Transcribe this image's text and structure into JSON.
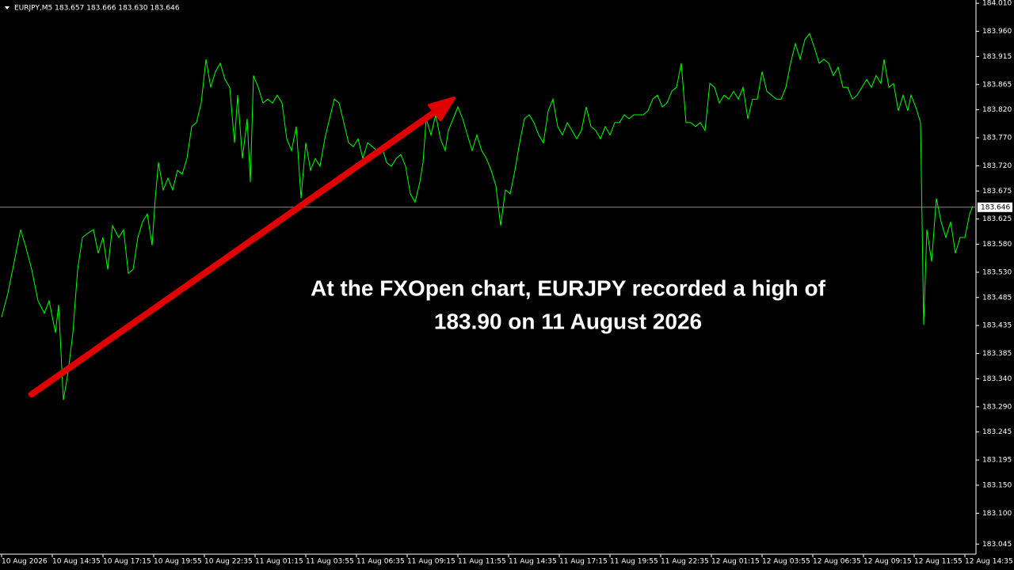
{
  "chart_data": {
    "type": "line",
    "title": "EURJPY,M5  183.657 183.666 183.630 183.646",
    "annotation": [
      "At the FXOpen chart, EURJPY recorded a high of",
      "183.90 on 11 August 2026"
    ],
    "color": "#00ff00",
    "grid": false,
    "current_price": {
      "value": 183.646,
      "label": "183.646"
    },
    "xlim": [
      -1,
      615
    ],
    "ylim": [
      183.027,
      184.013
    ],
    "xticks": [
      {
        "value": 0,
        "label": "10 Aug 2026"
      },
      {
        "value": 32,
        "label": "10 Aug 14:35"
      },
      {
        "value": 64,
        "label": "10 Aug 17:15"
      },
      {
        "value": 96,
        "label": "10 Aug 19:55"
      },
      {
        "value": 128,
        "label": "10 Aug 22:35"
      },
      {
        "value": 160,
        "label": "11 Aug 01:15"
      },
      {
        "value": 192,
        "label": "11 Aug 03:55"
      },
      {
        "value": 224,
        "label": "11 Aug 06:35"
      },
      {
        "value": 256,
        "label": "11 Aug 09:15"
      },
      {
        "value": 288,
        "label": "11 Aug 11:55"
      },
      {
        "value": 320,
        "label": "11 Aug 14:35"
      },
      {
        "value": 352,
        "label": "11 Aug 17:15"
      },
      {
        "value": 384,
        "label": "11 Aug 19:55"
      },
      {
        "value": 416,
        "label": "11 Aug 22:35"
      },
      {
        "value": 448,
        "label": "12 Aug 01:15"
      },
      {
        "value": 480,
        "label": "12 Aug 03:55"
      },
      {
        "value": 512,
        "label": "12 Aug 06:35"
      },
      {
        "value": 544,
        "label": "12 Aug 09:15"
      },
      {
        "value": 576,
        "label": "12 Aug 11:55"
      },
      {
        "value": 608,
        "label": "12 Aug 14:35"
      }
    ],
    "yticks": [
      {
        "value": 184.01,
        "label": "184.010"
      },
      {
        "value": 183.96,
        "label": "183.960"
      },
      183.915,
      183.865,
      {
        "value": 183.82,
        "label": "183.820"
      },
      {
        "value": 183.77,
        "label": "183.770"
      },
      {
        "value": 183.72,
        "label": "183.720"
      },
      183.675,
      183.625,
      {
        "value": 183.58,
        "label": "183.580"
      },
      {
        "value": 183.53,
        "label": "183.530"
      },
      183.485,
      183.435,
      183.385,
      {
        "value": 183.34,
        "label": "183.340"
      },
      {
        "value": 183.29,
        "label": "183.290"
      },
      183.245,
      183.195,
      {
        "value": 183.15,
        "label": "183.150"
      },
      {
        "value": 183.1,
        "label": "183.100"
      },
      183.045
    ],
    "x": [
      0,
      4,
      8,
      12,
      15,
      19,
      23,
      27,
      30,
      34,
      36,
      39,
      42,
      45,
      48,
      51,
      54,
      58,
      61,
      64,
      67,
      70,
      74,
      77,
      80,
      83,
      86,
      89,
      92,
      95,
      97,
      99,
      102,
      105,
      108,
      111,
      114,
      117,
      120,
      123,
      126,
      129,
      132,
      135,
      138,
      141,
      144,
      147,
      149,
      152,
      155,
      157,
      159,
      162,
      165,
      168,
      171,
      174,
      177,
      180,
      183,
      186,
      189,
      192,
      195,
      198,
      201,
      204,
      207,
      210,
      213,
      216,
      219,
      222,
      225,
      228,
      231,
      234,
      237,
      240,
      243,
      246,
      249,
      252,
      255,
      258,
      261,
      264,
      266,
      268,
      271,
      274,
      277,
      280,
      282,
      285,
      288,
      291,
      294,
      297,
      300,
      303,
      306,
      309,
      312,
      315,
      318,
      321,
      324,
      327,
      330,
      333,
      336,
      339,
      342,
      345,
      348,
      351,
      354,
      357,
      360,
      363,
      366,
      369,
      372,
      375,
      378,
      381,
      384,
      387,
      390,
      393,
      396,
      399,
      402,
      405,
      408,
      411,
      414,
      417,
      420,
      423,
      426,
      429,
      432,
      435,
      438,
      441,
      444,
      447,
      450,
      453,
      456,
      459,
      462,
      465,
      468,
      471,
      474,
      477,
      480,
      483,
      486,
      489,
      492,
      495,
      498,
      501,
      504,
      507,
      510,
      513,
      516,
      519,
      522,
      525,
      528,
      531,
      534,
      537,
      540,
      543,
      546,
      549,
      552,
      555,
      557,
      560,
      563,
      566,
      569,
      572,
      574,
      577,
      580,
      582,
      584,
      587,
      590,
      593,
      596,
      599,
      602,
      605,
      608,
      611,
      613
    ],
    "values": [
      183.45,
      183.493,
      183.549,
      183.606,
      183.578,
      183.535,
      183.479,
      183.457,
      183.479,
      183.422,
      183.472,
      183.302,
      183.352,
      183.422,
      183.535,
      183.592,
      183.599,
      183.606,
      183.564,
      183.592,
      183.535,
      183.613,
      183.592,
      183.606,
      183.528,
      183.535,
      183.592,
      183.62,
      183.634,
      183.578,
      183.662,
      183.726,
      183.677,
      183.698,
      183.677,
      183.712,
      183.705,
      183.733,
      183.79,
      183.797,
      183.832,
      183.91,
      183.86,
      183.888,
      183.903,
      183.874,
      183.86,
      183.761,
      183.846,
      183.733,
      183.804,
      183.691,
      183.881,
      183.86,
      183.832,
      183.839,
      183.832,
      183.846,
      183.832,
      183.768,
      183.747,
      183.79,
      183.662,
      183.761,
      183.712,
      183.733,
      183.719,
      183.768,
      183.804,
      183.839,
      183.832,
      183.797,
      183.761,
      183.754,
      183.768,
      183.733,
      183.761,
      183.754,
      183.747,
      183.754,
      183.726,
      183.719,
      183.733,
      183.74,
      183.719,
      183.67,
      183.655,
      183.691,
      183.726,
      183.804,
      183.775,
      183.811,
      183.768,
      183.747,
      183.783,
      183.804,
      183.825,
      183.804,
      183.775,
      183.747,
      183.775,
      183.747,
      183.733,
      183.712,
      183.684,
      183.613,
      183.677,
      183.67,
      183.712,
      183.761,
      183.804,
      183.811,
      183.797,
      183.775,
      183.761,
      183.818,
      183.839,
      183.79,
      183.775,
      183.797,
      183.783,
      183.768,
      183.783,
      183.825,
      183.79,
      183.783,
      183.768,
      183.79,
      183.775,
      183.797,
      183.797,
      183.811,
      183.804,
      183.811,
      183.811,
      183.811,
      183.818,
      183.839,
      183.846,
      183.825,
      183.832,
      183.853,
      183.86,
      183.903,
      183.797,
      183.797,
      183.79,
      183.797,
      183.783,
      183.867,
      183.86,
      183.832,
      183.846,
      183.839,
      183.853,
      183.839,
      183.86,
      183.804,
      183.839,
      183.839,
      183.888,
      183.853,
      183.846,
      183.839,
      183.839,
      183.86,
      183.903,
      183.938,
      183.91,
      183.945,
      183.956,
      183.931,
      183.903,
      183.91,
      183.903,
      183.881,
      183.896,
      183.86,
      183.86,
      183.839,
      183.846,
      183.86,
      183.874,
      183.86,
      183.881,
      183.867,
      183.91,
      183.86,
      183.867,
      183.818,
      183.846,
      183.818,
      183.846,
      183.825,
      183.797,
      183.436,
      183.606,
      183.549,
      183.662,
      183.62,
      183.592,
      183.62,
      183.564,
      183.592,
      183.592,
      183.634,
      183.648
    ]
  }
}
